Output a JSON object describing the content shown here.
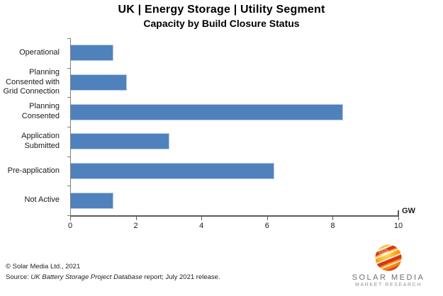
{
  "title": {
    "line1": "UK | Energy Storage | Utility Segment",
    "line2": "Capacity by Build Closure Status"
  },
  "chart_data": {
    "type": "bar",
    "orientation": "horizontal",
    "title": "UK | Energy Storage | Utility Segment — Capacity by Build Closure Status",
    "categories": [
      "Operational",
      "Planning Consented with Grid Connection",
      "Planning Consented",
      "Application Submitted",
      "Pre-application",
      "Not Active"
    ],
    "values": [
      1.3,
      1.7,
      8.3,
      3.0,
      6.2,
      1.3
    ],
    "xlim": [
      0,
      10
    ],
    "x_ticks": [
      0,
      2,
      4,
      6,
      8,
      10
    ],
    "unit_label": "GW",
    "xlabel": "GW",
    "ylabel": "",
    "grid": false,
    "legend": "none",
    "bar_color": "#4f81bd",
    "bar_border_color": "#b8cce4",
    "axis_color": "#595959"
  },
  "footer": {
    "copyright": "© Solar Media Ltd., 2021",
    "source_prefix": "Source: ",
    "source_italic": "UK Battery Storage Project Database",
    "source_suffix": " report; July 2021 release."
  },
  "logo": {
    "name": "SOLAR MEDIA",
    "subtitle": "MARKET RESEARCH"
  }
}
